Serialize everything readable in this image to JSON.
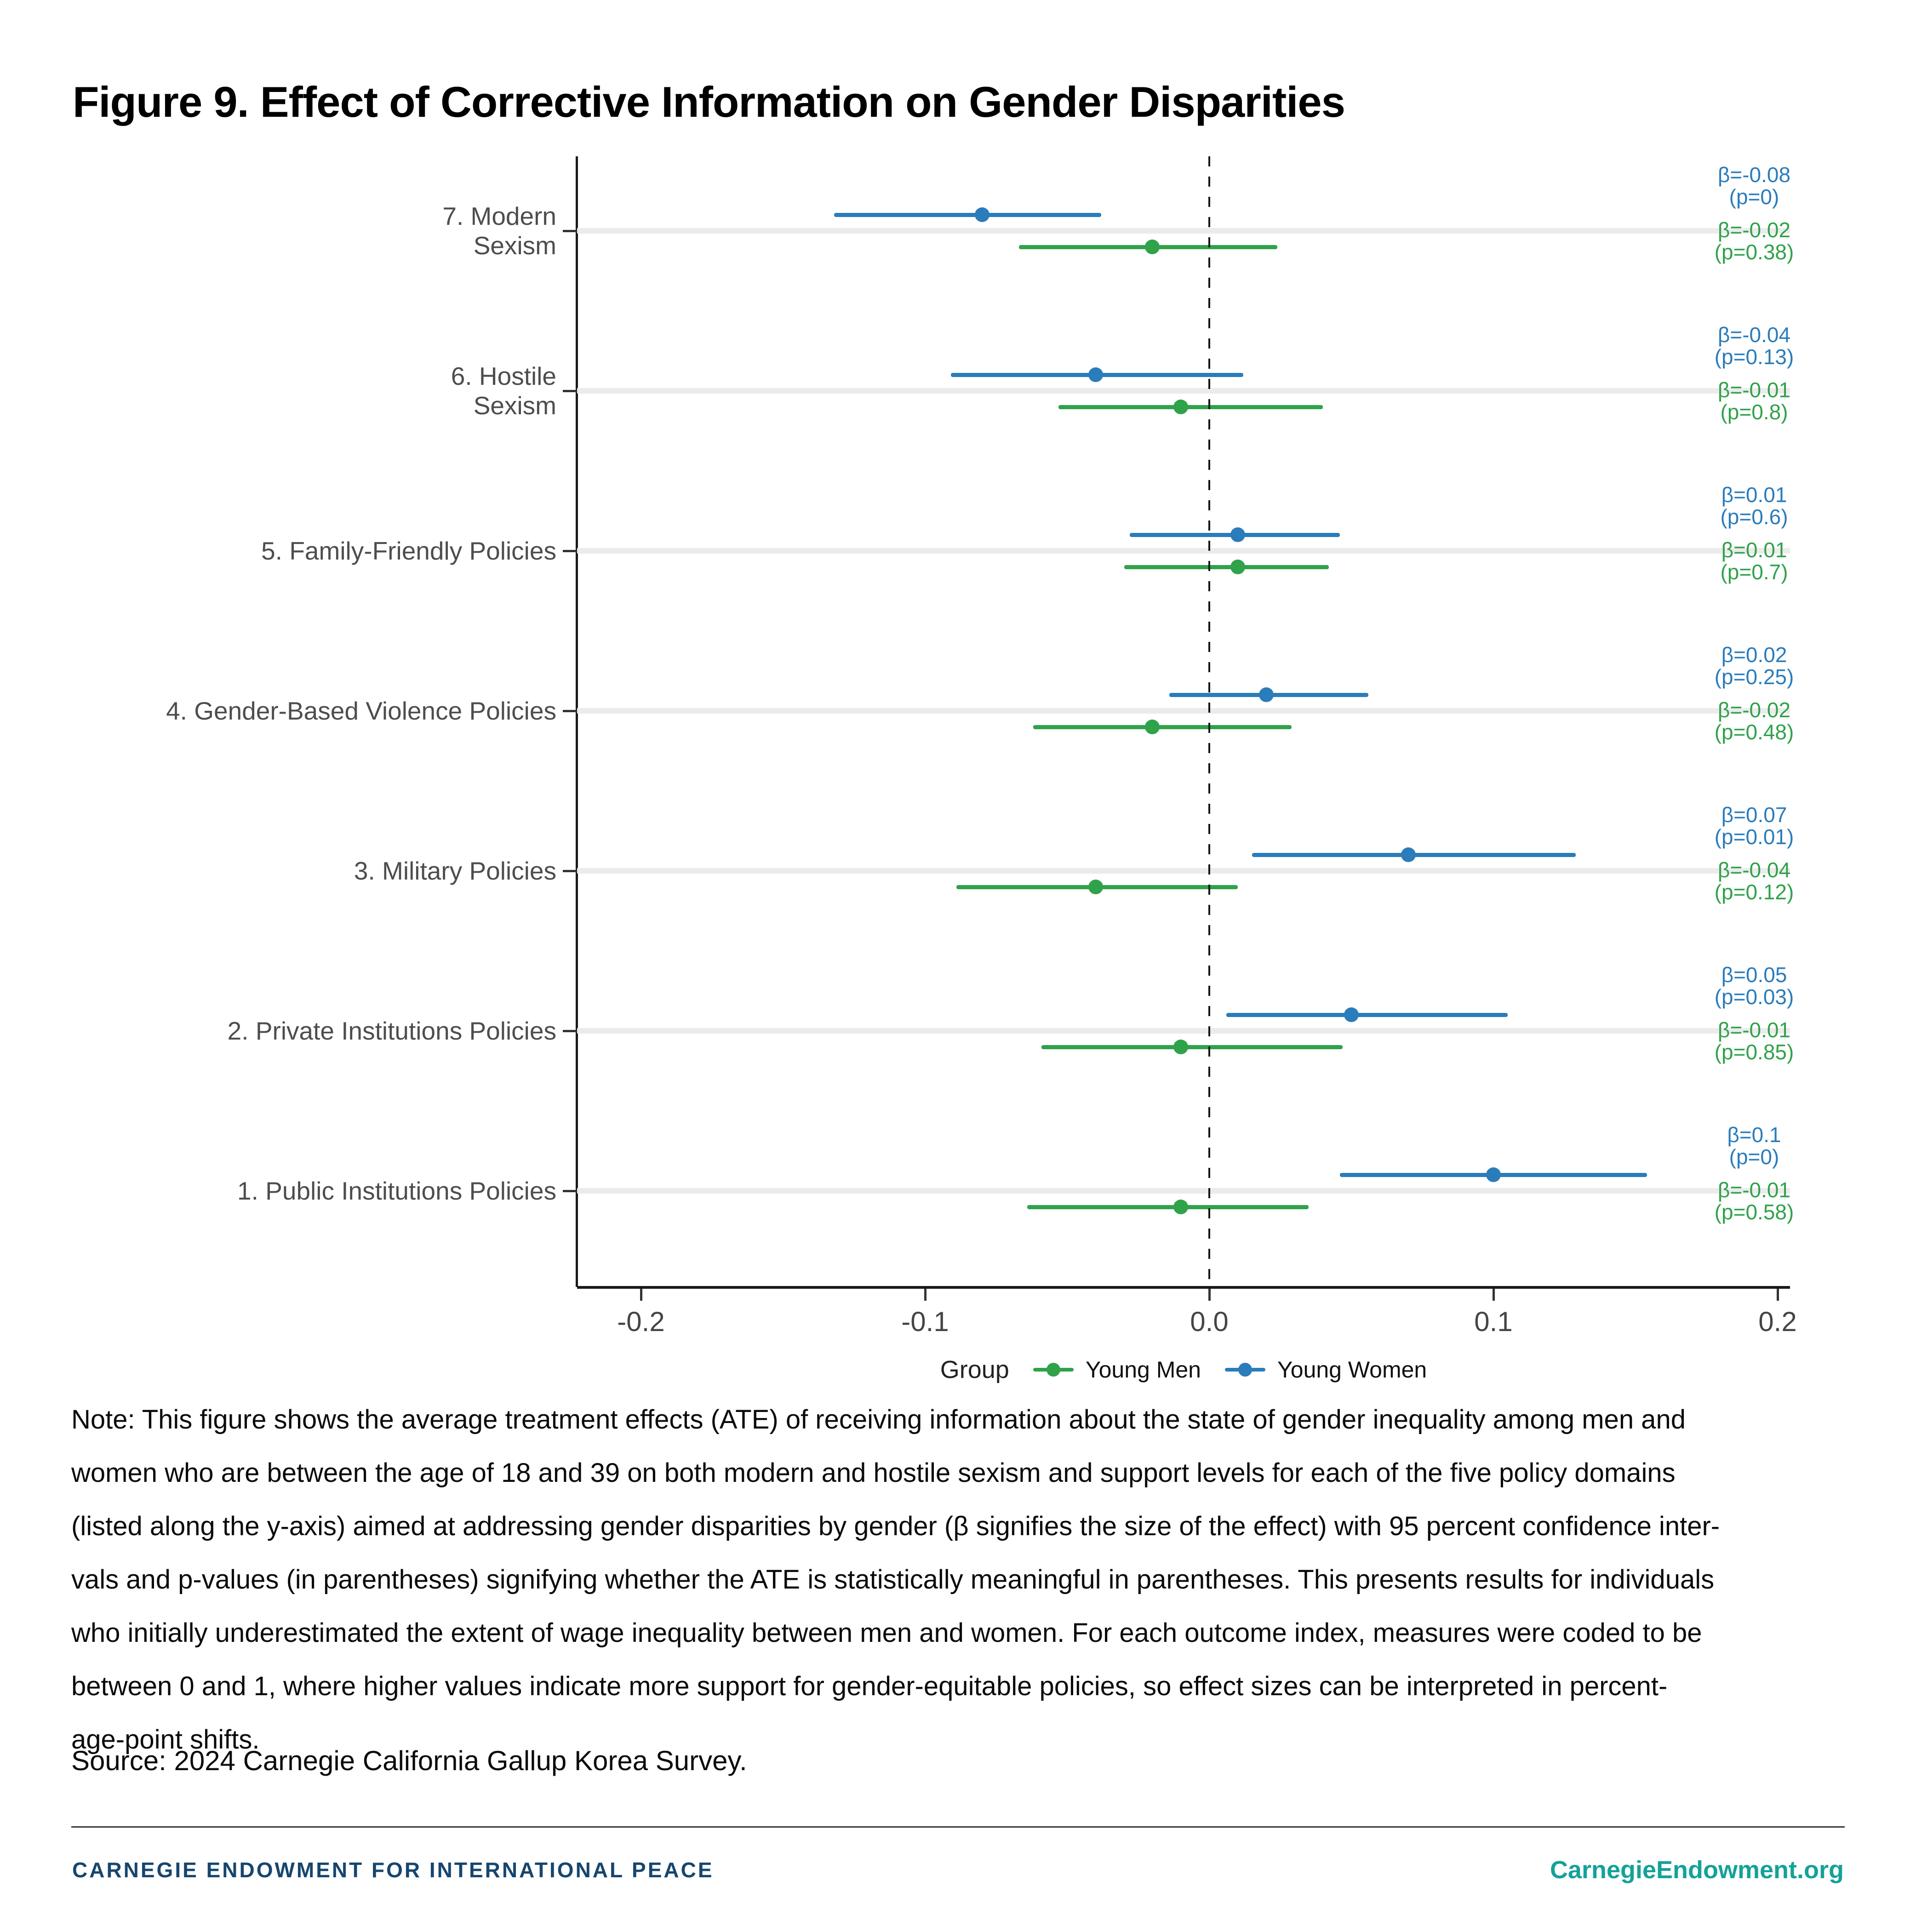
{
  "title": "Figure 9. Effect of Corrective Information on Gender Disparities",
  "chart_data": {
    "type": "scatter",
    "subtype": "forest-pointrange",
    "xlabel": "",
    "ylabel": "",
    "x_axis": {
      "ticks": [
        -0.2,
        -0.1,
        0.0,
        0.1,
        0.2
      ],
      "tick_labels": [
        "-0.2",
        "-0.1",
        "0.0",
        "0.1",
        "0.2"
      ],
      "range": [
        -0.2225,
        0.2045
      ],
      "zero_reference_line": "dotted"
    },
    "grid": "horizontal-major-only",
    "legend": {
      "title": "Group",
      "position": "bottom",
      "entries": [
        {
          "label": "Young Men",
          "color": "#2fa24a"
        },
        {
          "label": "Young Women",
          "color": "#2b7cba"
        }
      ]
    },
    "colors": {
      "young_men": "#2fa24a",
      "young_women": "#2b7cba",
      "band": "#ebebeb",
      "axis": "#1a1a1a",
      "tick_label": "#454545",
      "category_label": "#4d4d4d"
    },
    "categories": [
      {
        "label_lines": "7. Modern\nSexism",
        "young_women": {
          "beta": -0.08,
          "p": 0,
          "ci": [
            -0.132,
            -0.038
          ],
          "beta_label": "β=-0.08",
          "p_label": "(p=0)"
        },
        "young_men": {
          "beta": -0.02,
          "p": 0.38,
          "ci": [
            -0.067,
            0.024
          ],
          "beta_label": "β=-0.02",
          "p_label": "(p=0.38)"
        }
      },
      {
        "label_lines": "6. Hostile\nSexism",
        "young_women": {
          "beta": -0.04,
          "p": 0.13,
          "ci": [
            -0.091,
            0.012
          ],
          "beta_label": "β=-0.04",
          "p_label": "(p=0.13)"
        },
        "young_men": {
          "beta": -0.01,
          "p": 0.8,
          "ci": [
            -0.053,
            0.04
          ],
          "beta_label": "β=-0.01",
          "p_label": "(p=0.8)"
        }
      },
      {
        "label_lines": "5. Family-Friendly Policies",
        "young_women": {
          "beta": 0.01,
          "p": 0.6,
          "ci": [
            -0.028,
            0.046
          ],
          "beta_label": "β=0.01",
          "p_label": "(p=0.6)"
        },
        "young_men": {
          "beta": 0.01,
          "p": 0.7,
          "ci": [
            -0.03,
            0.042
          ],
          "beta_label": "β=0.01",
          "p_label": "(p=0.7)"
        }
      },
      {
        "label_lines": "4. Gender-Based Violence Policies",
        "young_women": {
          "beta": 0.02,
          "p": 0.25,
          "ci": [
            -0.014,
            0.056
          ],
          "beta_label": "β=0.02",
          "p_label": "(p=0.25)"
        },
        "young_men": {
          "beta": -0.02,
          "p": 0.48,
          "ci": [
            -0.062,
            0.029
          ],
          "beta_label": "β=-0.02",
          "p_label": "(p=0.48)"
        }
      },
      {
        "label_lines": "3. Military Policies",
        "young_women": {
          "beta": 0.07,
          "p": 0.01,
          "ci": [
            0.015,
            0.129
          ],
          "beta_label": "β=0.07",
          "p_label": "(p=0.01)"
        },
        "young_men": {
          "beta": -0.04,
          "p": 0.12,
          "ci": [
            -0.089,
            0.01
          ],
          "beta_label": "β=-0.04",
          "p_label": "(p=0.12)"
        }
      },
      {
        "label_lines": "2. Private Institutions Policies",
        "young_women": {
          "beta": 0.05,
          "p": 0.03,
          "ci": [
            0.006,
            0.105
          ],
          "beta_label": "β=0.05",
          "p_label": "(p=0.03)"
        },
        "young_men": {
          "beta": -0.01,
          "p": 0.85,
          "ci": [
            -0.059,
            0.047
          ],
          "beta_label": "β=-0.01",
          "p_label": "(p=0.85)"
        }
      },
      {
        "label_lines": "1. Public Institutions Policies",
        "young_women": {
          "beta": 0.1,
          "p": 0,
          "ci": [
            0.046,
            0.154
          ],
          "beta_label": "β=0.1",
          "p_label": "(p=0)"
        },
        "young_men": {
          "beta": -0.01,
          "p": 0.58,
          "ci": [
            -0.064,
            0.035
          ],
          "beta_label": "β=-0.01",
          "p_label": "(p=0.58)"
        }
      }
    ]
  },
  "note_text": "Note: This figure shows the average treatment effects (ATE) of receiving information about the state of gender inequality among men and\nwomen who are between the age of 18 and 39 on both modern and hostile sexism and support levels for each of the five policy domains\n(listed along the y-axis) aimed at addressing gender disparities by gender (β signifies the size of the effect) with 95 percent confidence inter-\nvals and p-values (in parentheses) signifying whether the ATE is statistically meaningful in parentheses. This presents results for individuals\nwho initially underestimated the extent of wage inequality between men and women. For each outcome index, measures were coded to be\nbetween 0 and 1, where higher values indicate more support for gender-equitable policies, so effect sizes can be interpreted in percent-\nage-point shifts.",
  "source": "Source: 2024 Carnegie California Gallup Korea Survey.",
  "footer": {
    "left": "CARNEGIE ENDOWMENT FOR INTERNATIONAL PEACE",
    "right": "CarnegieEndowment.org"
  }
}
